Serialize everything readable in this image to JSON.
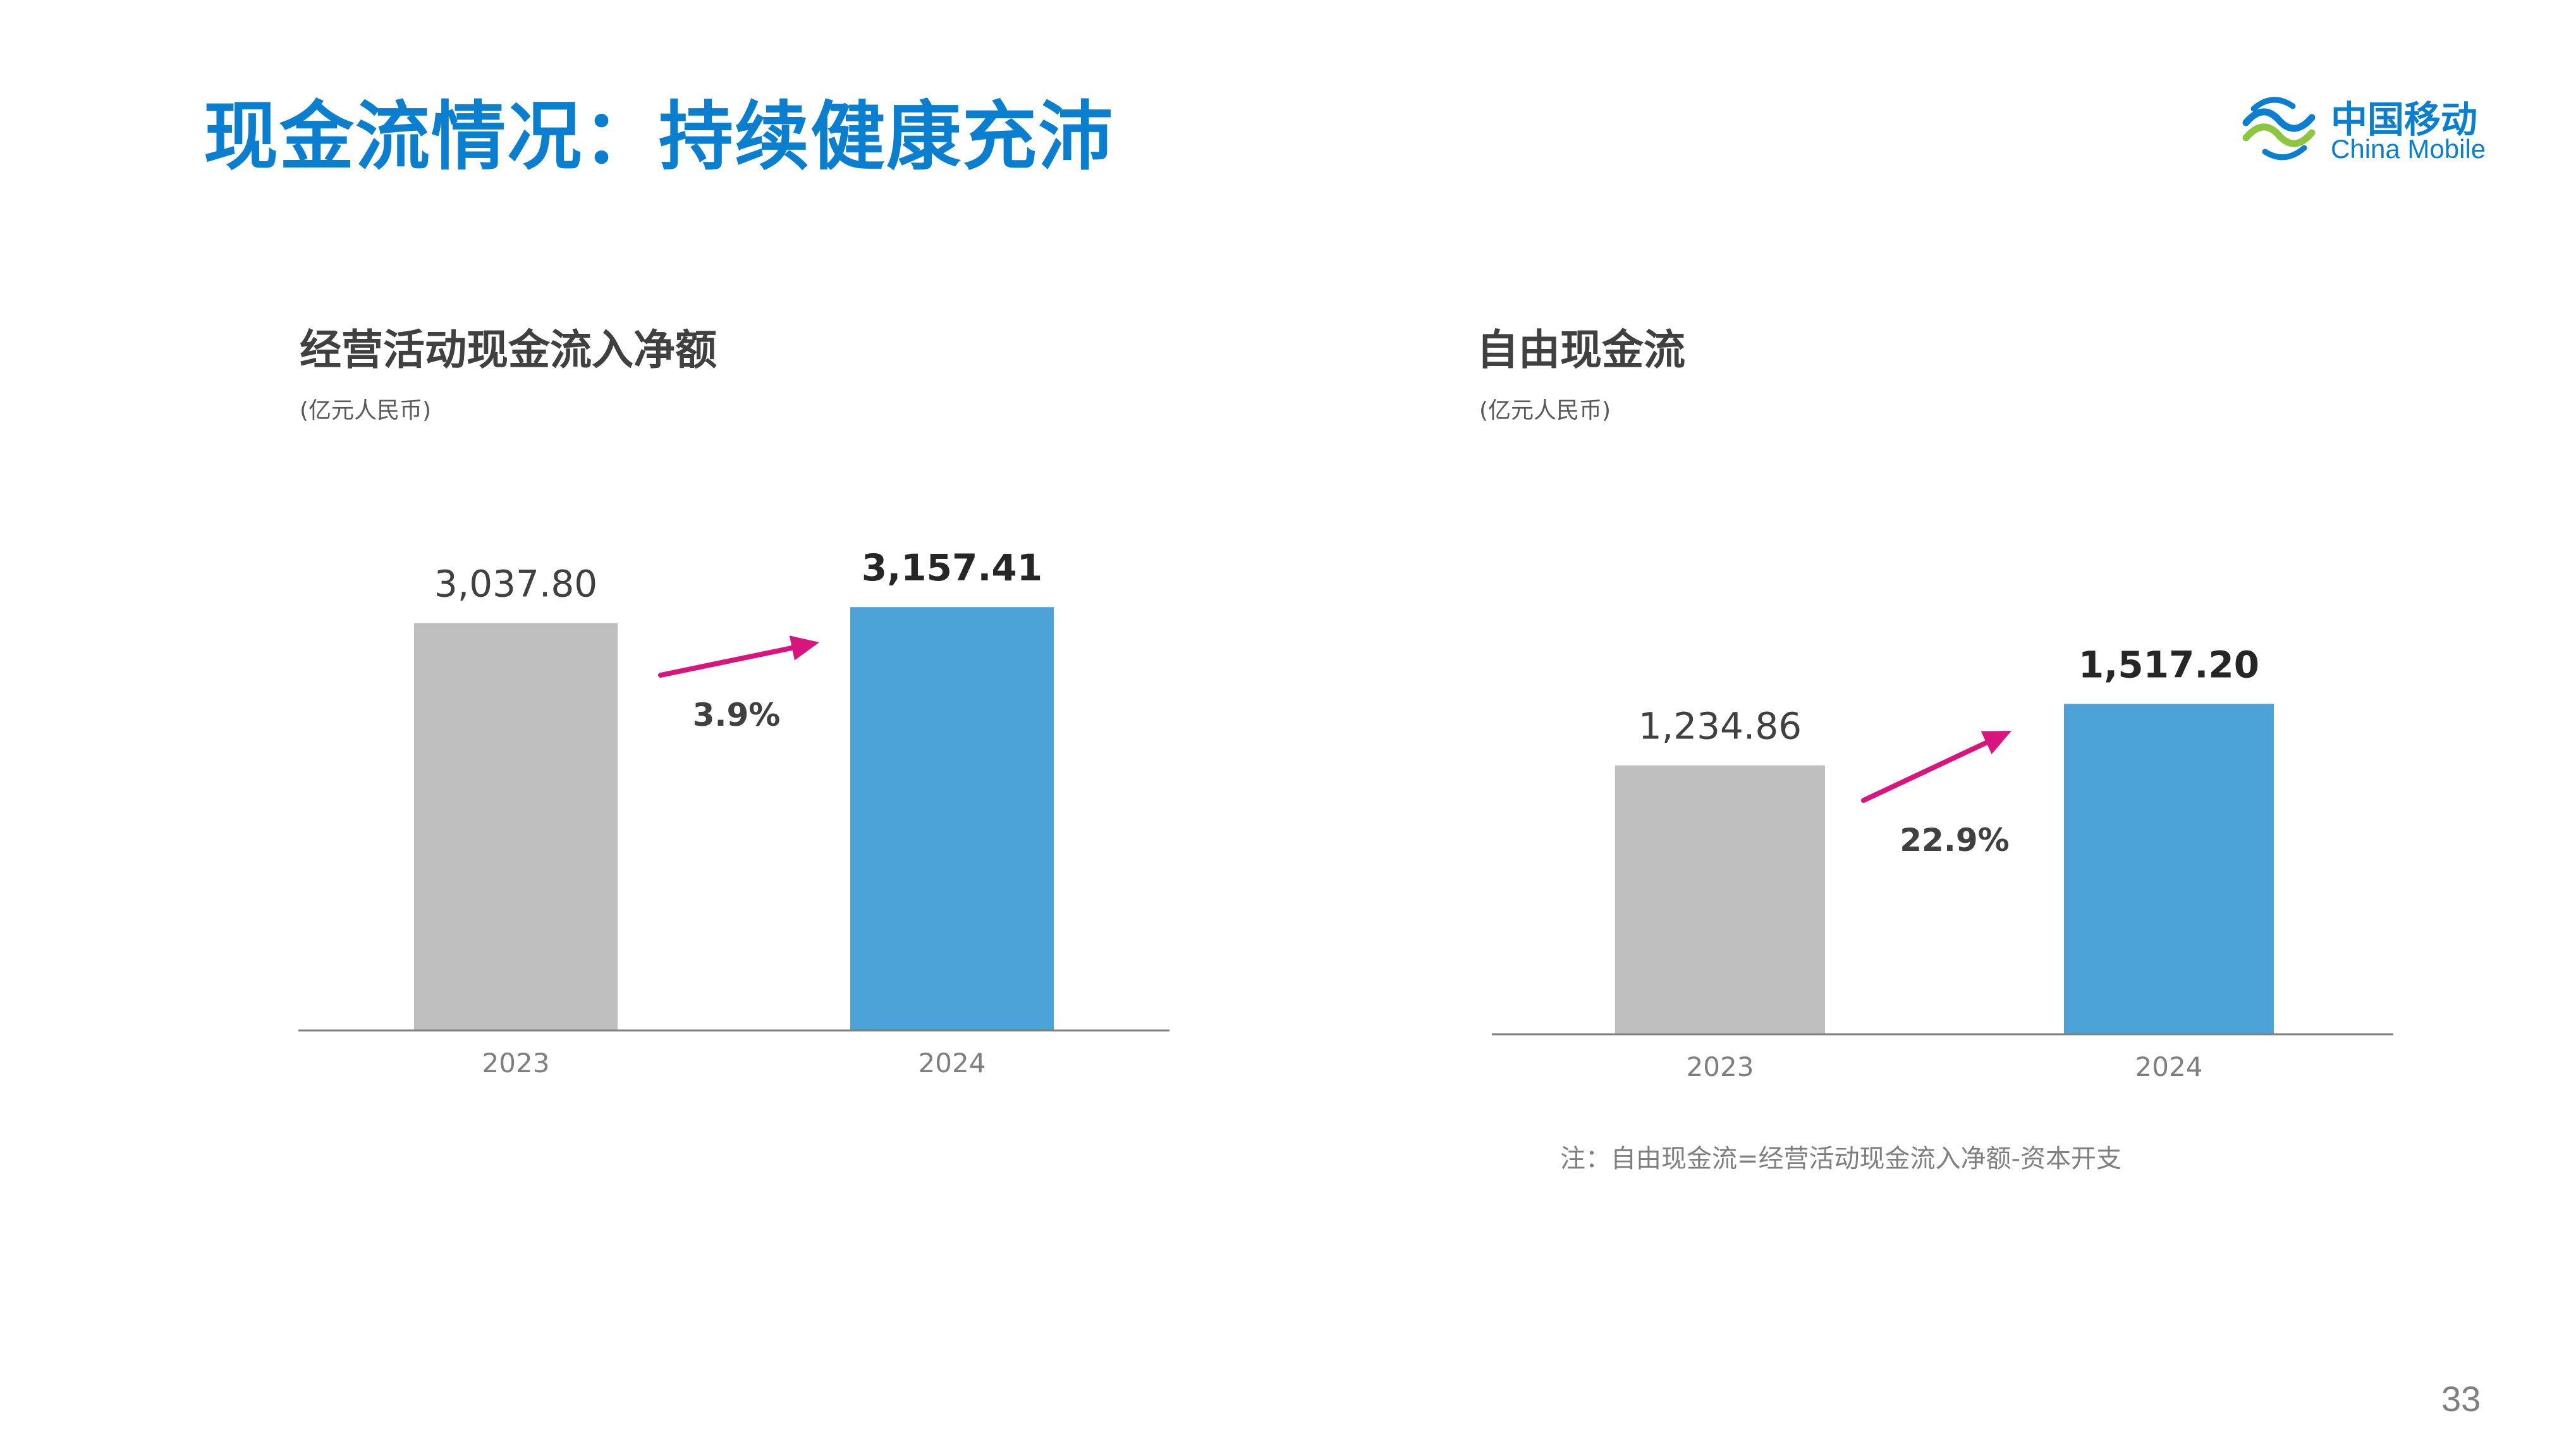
{
  "slide": {
    "title": "现金流情况：持续健康充沛",
    "page_number": "33",
    "note": "注：自由现金流=经营活动现金流入净额-资本开支"
  },
  "logo": {
    "name_cn": "中国移动",
    "name_en": "China Mobile",
    "icon": "china-mobile-logo-icon"
  },
  "colors": {
    "title": "#0a7fcf",
    "bar_2023": "#bfbfbf",
    "bar_2024": "#4ba3d8",
    "arrow": "#d8157c",
    "axis": "#7f7f7f"
  },
  "chart_data": [
    {
      "type": "bar",
      "title": "经营活动现金流入净额",
      "unit": "(亿元人民币)",
      "categories": [
        "2023",
        "2024"
      ],
      "values": [
        3037.8,
        3157.41
      ],
      "value_labels": [
        "3,037.80",
        "3,157.41"
      ],
      "growth_label": "3.9%",
      "ylim": [
        0,
        3300
      ]
    },
    {
      "type": "bar",
      "title": "自由现金流",
      "unit": "(亿元人民币)",
      "categories": [
        "2023",
        "2024"
      ],
      "values": [
        1234.86,
        1517.2
      ],
      "value_labels": [
        "1,234.86",
        "1,517.20"
      ],
      "growth_label": "22.9%",
      "ylim": [
        0,
        1800
      ]
    }
  ]
}
